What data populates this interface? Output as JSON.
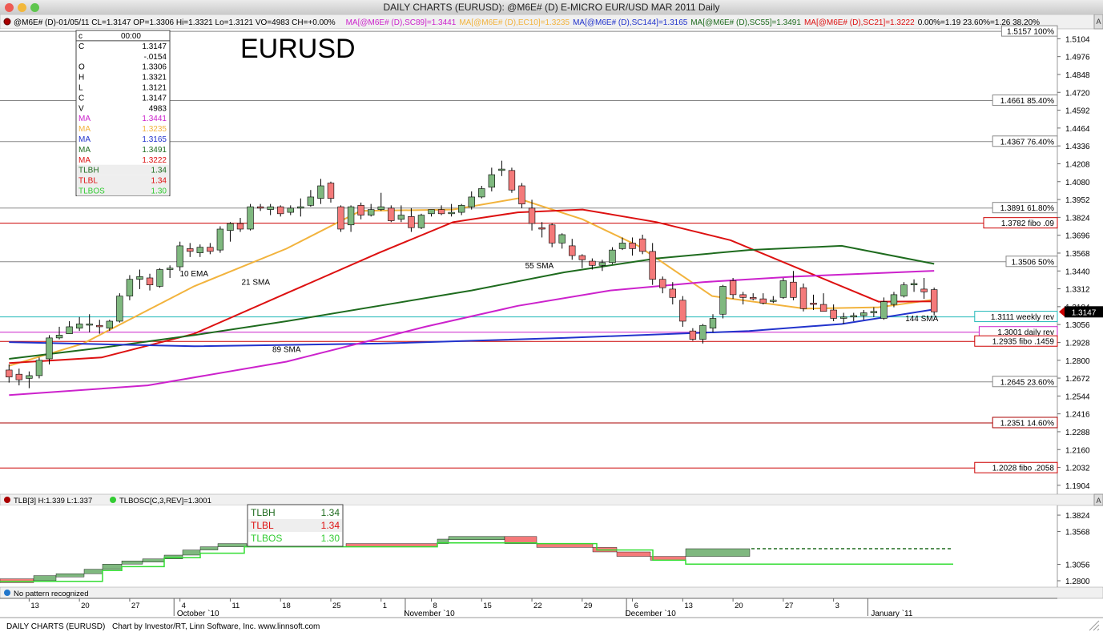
{
  "window": {
    "title": "DAILY CHARTS (EURUSD): @M6E# (D) E-MICRO EUR/USD MAR 2011 Daily"
  },
  "header": {
    "segments": [
      {
        "text": "@M6E# (D)-01/05/11 CL=1.3147 OP=1.3306 Hi=1.3321 Lo=1.3121 VO=4983 CH=+0.00%",
        "color": "#000000"
      },
      {
        "text": "MA[@M6E# (D),SC89]=1.3441",
        "color": "#cc22cc"
      },
      {
        "text": "MA[@M6E# (D),EC10]=1.3235",
        "color": "#f2b33d"
      },
      {
        "text": "MA[@M6E# (D),SC144]=1.3165",
        "color": "#2233cc"
      },
      {
        "text": "MA[@M6E# (D),SC55]=1.3491",
        "color": "#1e6b1e"
      },
      {
        "text": "MA[@M6E# (D),SC21]=1.3222",
        "color": "#dd1111"
      },
      {
        "text": "0.00%=1.19 23.60%=1.26 38.20%",
        "color": "#000000"
      }
    ],
    "a_button": "A"
  },
  "big_title": "EURUSD",
  "data_box": {
    "header_symbol": "c",
    "header_time": "00:00",
    "rows": [
      {
        "label": "C",
        "value": "1.3147",
        "color": "#000000",
        "bg": ""
      },
      {
        "label": "",
        "value": "-.0154",
        "color": "#000000",
        "bg": ""
      },
      {
        "label": "O",
        "value": "1.3306",
        "color": "#000000",
        "bg": ""
      },
      {
        "label": "H",
        "value": "1.3321",
        "color": "#000000",
        "bg": ""
      },
      {
        "label": "L",
        "value": "1.3121",
        "color": "#000000",
        "bg": ""
      },
      {
        "label": "C",
        "value": "1.3147",
        "color": "#000000",
        "bg": ""
      },
      {
        "label": "V",
        "value": "4983",
        "color": "#000000",
        "bg": ""
      },
      {
        "label": "MA",
        "value": "1.3441",
        "color": "#cc22cc",
        "bg": ""
      },
      {
        "label": "MA",
        "value": "1.3235",
        "color": "#f2b33d",
        "bg": ""
      },
      {
        "label": "MA",
        "value": "1.3165",
        "color": "#2233cc",
        "bg": ""
      },
      {
        "label": "MA",
        "value": "1.3491",
        "color": "#1e6b1e",
        "bg": ""
      },
      {
        "label": "MA",
        "value": "1.3222",
        "color": "#dd1111",
        "bg": ""
      },
      {
        "label": "TLBH",
        "value": "1.34",
        "color": "#1e6b1e",
        "bg": "#eeeeee"
      },
      {
        "label": "TLBL",
        "value": "1.34",
        "color": "#dd1111",
        "bg": "#eeeeee"
      },
      {
        "label": "TLBOS",
        "value": "1.30",
        "color": "#33cc33",
        "bg": "#eeeeee"
      }
    ]
  },
  "chart_data": [
    {
      "type": "candlestick",
      "name": "@M6E# (D) E-MICRO EUR/USD MAR 2011 Daily",
      "colors": {
        "up": "#7fb87f",
        "down": "#f47a7a"
      },
      "x_tick_labels": [
        "13",
        "20",
        "27",
        "4",
        "11",
        "18",
        "25",
        "1",
        "8",
        "15",
        "22",
        "29",
        "6",
        "13",
        "20",
        "27",
        "3"
      ],
      "month_labels": [
        "October `10",
        "November `10",
        "December `10",
        "January `11"
      ],
      "y_range": [
        1.184,
        1.5175
      ],
      "y_tick_labels": [
        "1.5104",
        "1.4976",
        "1.4848",
        "1.4720",
        "1.4592",
        "1.4464",
        "1.4336",
        "1.4208",
        "1.4080",
        "1.3952",
        "1.3824",
        "1.3696",
        "1.3568",
        "1.3440",
        "1.3312",
        "1.3184",
        "1.3056",
        "1.2928",
        "1.2800",
        "1.2672",
        "1.2544",
        "1.2416",
        "1.2288",
        "1.2160",
        "1.2032",
        "1.1904"
      ],
      "ohlc": [
        [
          1.273,
          1.277,
          1.264,
          1.268
        ],
        [
          1.27,
          1.274,
          1.262,
          1.266
        ],
        [
          1.267,
          1.272,
          1.26,
          1.269
        ],
        [
          1.269,
          1.282,
          1.267,
          1.28
        ],
        [
          1.281,
          1.298,
          1.277,
          1.296
        ],
        [
          1.296,
          1.304,
          1.295,
          1.298
        ],
        [
          1.299,
          1.308,
          1.299,
          1.304
        ],
        [
          1.303,
          1.311,
          1.301,
          1.306
        ],
        [
          1.306,
          1.313,
          1.3,
          1.306
        ],
        [
          1.305,
          1.309,
          1.299,
          1.304
        ],
        [
          1.303,
          1.309,
          1.301,
          1.308
        ],
        [
          1.308,
          1.328,
          1.307,
          1.326
        ],
        [
          1.326,
          1.341,
          1.323,
          1.338
        ],
        [
          1.338,
          1.345,
          1.331,
          1.34
        ],
        [
          1.339,
          1.342,
          1.33,
          1.334
        ],
        [
          1.333,
          1.346,
          1.332,
          1.345
        ],
        [
          1.345,
          1.348,
          1.339,
          1.346
        ],
        [
          1.347,
          1.365,
          1.344,
          1.362
        ],
        [
          1.36,
          1.364,
          1.354,
          1.358
        ],
        [
          1.357,
          1.363,
          1.354,
          1.361
        ],
        [
          1.361,
          1.364,
          1.356,
          1.358
        ],
        [
          1.359,
          1.376,
          1.357,
          1.374
        ],
        [
          1.373,
          1.379,
          1.365,
          1.378
        ],
        [
          1.378,
          1.382,
          1.372,
          1.374
        ],
        [
          1.374,
          1.392,
          1.373,
          1.39
        ],
        [
          1.39,
          1.392,
          1.387,
          1.389
        ],
        [
          1.388,
          1.392,
          1.384,
          1.39
        ],
        [
          1.39,
          1.391,
          1.383,
          1.385
        ],
        [
          1.386,
          1.391,
          1.384,
          1.389
        ],
        [
          1.389,
          1.396,
          1.383,
          1.39
        ],
        [
          1.391,
          1.402,
          1.39,
          1.397
        ],
        [
          1.396,
          1.41,
          1.392,
          1.405
        ],
        [
          1.407,
          1.408,
          1.393,
          1.396
        ],
        [
          1.39,
          1.391,
          1.372,
          1.374
        ],
        [
          1.377,
          1.391,
          1.372,
          1.39
        ],
        [
          1.391,
          1.393,
          1.381,
          1.384
        ],
        [
          1.384,
          1.392,
          1.383,
          1.388
        ],
        [
          1.388,
          1.4,
          1.387,
          1.39
        ],
        [
          1.389,
          1.391,
          1.379,
          1.38
        ],
        [
          1.381,
          1.391,
          1.379,
          1.384
        ],
        [
          1.383,
          1.389,
          1.372,
          1.375
        ],
        [
          1.375,
          1.385,
          1.374,
          1.384
        ],
        [
          1.385,
          1.388,
          1.383,
          1.388
        ],
        [
          1.388,
          1.391,
          1.384,
          1.385
        ],
        [
          1.385,
          1.392,
          1.383,
          1.386
        ],
        [
          1.386,
          1.392,
          1.384,
          1.391
        ],
        [
          1.39,
          1.401,
          1.388,
          1.397
        ],
        [
          1.397,
          1.405,
          1.396,
          1.403
        ],
        [
          1.404,
          1.418,
          1.401,
          1.413
        ],
        [
          1.416,
          1.423,
          1.412,
          1.417
        ],
        [
          1.416,
          1.418,
          1.4,
          1.402
        ],
        [
          1.405,
          1.407,
          1.389,
          1.392
        ],
        [
          1.389,
          1.395,
          1.373,
          1.378
        ],
        [
          1.375,
          1.379,
          1.368,
          1.374
        ],
        [
          1.377,
          1.378,
          1.361,
          1.364
        ],
        [
          1.364,
          1.371,
          1.36,
          1.37
        ],
        [
          1.362,
          1.367,
          1.352,
          1.355
        ],
        [
          1.355,
          1.356,
          1.346,
          1.352
        ],
        [
          1.351,
          1.353,
          1.345,
          1.348
        ],
        [
          1.348,
          1.352,
          1.344,
          1.35
        ],
        [
          1.35,
          1.361,
          1.349,
          1.359
        ],
        [
          1.36,
          1.368,
          1.359,
          1.364
        ],
        [
          1.364,
          1.368,
          1.355,
          1.36
        ],
        [
          1.367,
          1.37,
          1.356,
          1.358
        ],
        [
          1.358,
          1.364,
          1.334,
          1.338
        ],
        [
          1.338,
          1.34,
          1.328,
          1.332
        ],
        [
          1.331,
          1.336,
          1.32,
          1.325
        ],
        [
          1.323,
          1.326,
          1.304,
          1.308
        ],
        [
          1.301,
          1.303,
          1.294,
          1.295
        ],
        [
          1.295,
          1.306,
          1.292,
          1.305
        ],
        [
          1.303,
          1.313,
          1.3,
          1.31
        ],
        [
          1.313,
          1.334,
          1.31,
          1.333
        ],
        [
          1.337,
          1.339,
          1.324,
          1.327
        ],
        [
          1.327,
          1.329,
          1.32,
          1.325
        ],
        [
          1.325,
          1.328,
          1.323,
          1.324
        ],
        [
          1.324,
          1.328,
          1.32,
          1.321
        ],
        [
          1.323,
          1.326,
          1.321,
          1.323
        ],
        [
          1.325,
          1.339,
          1.324,
          1.337
        ],
        [
          1.336,
          1.344,
          1.323,
          1.325
        ],
        [
          1.332,
          1.335,
          1.315,
          1.317
        ],
        [
          1.321,
          1.327,
          1.316,
          1.32
        ],
        [
          1.32,
          1.328,
          1.315,
          1.315
        ],
        [
          1.316,
          1.32,
          1.308,
          1.31
        ],
        [
          1.31,
          1.314,
          1.306,
          1.311
        ],
        [
          1.311,
          1.314,
          1.308,
          1.312
        ],
        [
          1.312,
          1.316,
          1.309,
          1.314
        ],
        [
          1.314,
          1.318,
          1.311,
          1.315
        ],
        [
          1.31,
          1.325,
          1.309,
          1.322
        ],
        [
          1.32,
          1.329,
          1.318,
          1.327
        ],
        [
          1.326,
          1.336,
          1.325,
          1.334
        ],
        [
          1.334,
          1.338,
          1.329,
          1.335
        ],
        [
          1.331,
          1.339,
          1.324,
          1.329
        ],
        [
          1.3306,
          1.3321,
          1.3121,
          1.3147
        ]
      ],
      "moving_averages": [
        {
          "name": "10 EMA",
          "color": "#f2b33d",
          "points": [
            [
              0,
              1.276
            ],
            [
              8,
              1.292
            ],
            [
              20,
              1.333
            ],
            [
              30,
              1.36
            ],
            [
              38,
              1.387
            ],
            [
              48,
              1.388
            ],
            [
              55,
              1.396
            ],
            [
              62,
              1.381
            ],
            [
              68,
              1.362
            ],
            [
              76,
              1.326
            ],
            [
              86,
              1.317
            ],
            [
              94,
              1.318
            ],
            [
              100,
              1.3235
            ]
          ]
        },
        {
          "name": "21 SMA",
          "color": "#dd1111",
          "points": [
            [
              0,
              1.278
            ],
            [
              10,
              1.282
            ],
            [
              20,
              1.299
            ],
            [
              30,
              1.328
            ],
            [
              40,
              1.357
            ],
            [
              48,
              1.379
            ],
            [
              55,
              1.386
            ],
            [
              62,
              1.388
            ],
            [
              70,
              1.379
            ],
            [
              78,
              1.366
            ],
            [
              86,
              1.344
            ],
            [
              94,
              1.322
            ],
            [
              100,
              1.3222
            ]
          ]
        },
        {
          "name": "55 SMA",
          "color": "#1e6b1e",
          "points": [
            [
              0,
              1.281
            ],
            [
              10,
              1.289
            ],
            [
              20,
              1.298
            ],
            [
              30,
              1.308
            ],
            [
              40,
              1.319
            ],
            [
              50,
              1.33
            ],
            [
              60,
              1.343
            ],
            [
              70,
              1.353
            ],
            [
              80,
              1.359
            ],
            [
              90,
              1.362
            ],
            [
              100,
              1.3491
            ]
          ]
        },
        {
          "name": "144 SMA",
          "color": "#2233cc",
          "points": [
            [
              0,
              1.293
            ],
            [
              20,
              1.29
            ],
            [
              40,
              1.292
            ],
            [
              60,
              1.296
            ],
            [
              80,
              1.301
            ],
            [
              90,
              1.306
            ],
            [
              100,
              1.3165
            ]
          ]
        },
        {
          "name": "89 SMA",
          "color": "#cc22cc",
          "points": [
            [
              0,
              1.255
            ],
            [
              15,
              1.262
            ],
            [
              30,
              1.279
            ],
            [
              45,
              1.304
            ],
            [
              55,
              1.319
            ],
            [
              65,
              1.33
            ],
            [
              75,
              1.336
            ],
            [
              85,
              1.34
            ],
            [
              100,
              1.3441
            ]
          ]
        }
      ],
      "ma_labels": [
        {
          "text": "10 EMA",
          "x_index": 30,
          "y": 1.34
        },
        {
          "text": "21 SMA",
          "x_index": 40,
          "y": 1.334
        },
        {
          "text": "55 SMA",
          "x_index": 86,
          "y": 1.346
        },
        {
          "text": "144 SMA",
          "x_index": 148,
          "y": 1.308
        },
        {
          "text": "89 SMA",
          "x_index": 45,
          "y": 1.286
        }
      ],
      "horizontal_levels": [
        {
          "label": "1.5157 100%",
          "value": 1.5157,
          "color": "#888888"
        },
        {
          "label": "1.4661 85.40%",
          "value": 1.4661,
          "color": "#888888"
        },
        {
          "label": "1.4367 76.40%",
          "value": 1.4367,
          "color": "#888888"
        },
        {
          "label": "1.3891 61.80%",
          "value": 1.3891,
          "color": "#888888"
        },
        {
          "label": "1.3782 fibo .09",
          "value": 1.3782,
          "color": "#cc0000"
        },
        {
          "label": "1.3506 50%",
          "value": 1.3506,
          "color": "#888888"
        },
        {
          "label": "1.3111 weekly rev",
          "value": 1.3111,
          "color": "#22b8b8"
        },
        {
          "label": "1.3001 daily rev",
          "value": 1.3001,
          "color": "#cc22cc"
        },
        {
          "label": "1.2935 fibo .1459",
          "value": 1.2935,
          "color": "#cc0000"
        },
        {
          "label": "1.2645 23.60%",
          "value": 1.2645,
          "color": "#888888"
        },
        {
          "label": "1.2351 14.60%",
          "value": 1.2351,
          "color": "#aa0000"
        },
        {
          "label": "1.2028 fibo .2058",
          "value": 1.2028,
          "color": "#cc0000"
        }
      ],
      "last_price_label": "1.3147"
    },
    {
      "type": "three-line-break",
      "indicator_header": "TLB[3] H:1.339 L:1.337",
      "indicator_header2": "TLBOSC[C,3,REV]=1.3001",
      "y_tick_labels": [
        "1.3824",
        "1.3568",
        "1.3056",
        "1.2800"
      ],
      "legend": [
        {
          "label": "TLBH",
          "value": "1.34",
          "color": "#1e6b1e"
        },
        {
          "label": "TLBL",
          "value": "1.34",
          "color": "#dd1111"
        },
        {
          "label": "TLBOS",
          "value": "1.30",
          "color": "#33cc33"
        }
      ]
    }
  ],
  "pattern_status": "No pattern recognized",
  "footer": {
    "left": "DAILY CHARTS (EURUSD)",
    "right": "Chart by Investor/RT, Linn Software, Inc. www.linnsoft.com"
  }
}
